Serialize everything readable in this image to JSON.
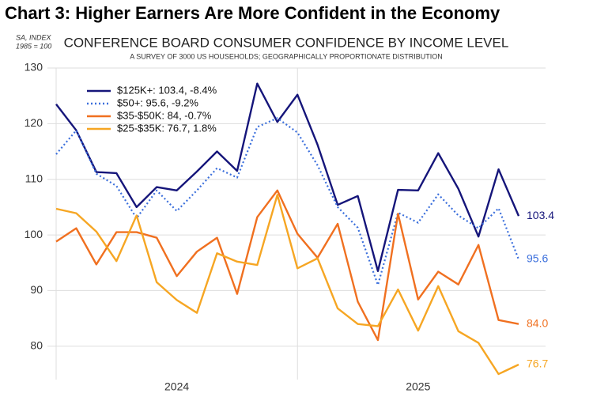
{
  "page_title": "Chart 3: Higher Earners Are More Confident in the Economy",
  "chart_data": {
    "type": "line",
    "title": "CONFERENCE BOARD CONSUMER CONFIDENCE BY INCOME LEVEL",
    "subtitle": "A SURVEY OF 3000 US HOUSEHOLDS; GEOGRAPHICALLY PROPORTIONATE DISTRIBUTION",
    "y_label_lines": [
      "SA, INDEX",
      "1985 = 100"
    ],
    "categories": [
      null,
      null,
      null,
      null,
      null,
      null,
      "2024",
      null,
      null,
      null,
      null,
      null,
      null,
      null,
      null,
      null,
      null,
      null,
      "2025",
      null,
      null,
      null,
      null,
      null
    ],
    "ylim": [
      74,
      130
    ],
    "yticks": [
      80,
      90,
      100,
      110,
      120,
      130
    ],
    "grid": true,
    "legend": "upper-left",
    "series": [
      {
        "name": "$125K+: 103.4, -8.4%",
        "color": "#15157a",
        "style": "solid",
        "values": [
          123.5,
          118.8,
          111.3,
          111.1,
          105.0,
          108.6,
          108.0,
          111.4,
          115.0,
          111.5,
          127.2,
          120.3,
          125.2,
          116.2,
          105.4,
          107.0,
          93.5,
          108.1,
          108.0,
          114.7,
          108.3,
          99.7,
          111.8,
          103.4
        ],
        "value_labels": [
          null,
          null,
          null,
          null,
          null,
          null,
          null,
          null,
          null,
          null,
          null,
          null,
          null,
          null,
          null,
          null,
          null,
          null,
          null,
          null,
          null,
          null,
          null,
          "103.4"
        ]
      },
      {
        "name": "$50+: 95.6, -9.2%",
        "color": "#3b6fdc",
        "style": "dotted",
        "values": [
          114.5,
          118.8,
          111.0,
          108.8,
          103.0,
          108.0,
          104.3,
          108.0,
          112.0,
          110.3,
          119.4,
          121.0,
          118.4,
          112.5,
          105.0,
          101.3,
          91.0,
          104.0,
          102.2,
          107.3,
          103.5,
          101.2,
          104.8,
          95.6
        ],
        "value_labels": [
          null,
          null,
          null,
          null,
          null,
          null,
          null,
          null,
          null,
          null,
          null,
          null,
          null,
          null,
          null,
          null,
          null,
          null,
          null,
          null,
          null,
          null,
          null,
          "95.6"
        ]
      },
      {
        "name": "$35-$50K: 84, -0.7%",
        "color": "#f07020",
        "style": "solid",
        "values": [
          98.8,
          101.2,
          94.7,
          100.5,
          100.5,
          99.5,
          92.6,
          97.0,
          99.5,
          89.4,
          103.2,
          108.0,
          100.2,
          95.9,
          102.0,
          88.0,
          81.1,
          103.8,
          88.4,
          93.4,
          91.1,
          98.2,
          84.7,
          84
        ],
        "value_labels": [
          null,
          null,
          null,
          null,
          null,
          null,
          null,
          null,
          null,
          null,
          null,
          null,
          null,
          null,
          null,
          null,
          null,
          null,
          null,
          null,
          null,
          null,
          null,
          "84.0"
        ]
      },
      {
        "name": "$25-$35K: 76.7, 1.8%",
        "color": "#f6a623",
        "style": "solid",
        "values": [
          104.7,
          103.9,
          100.6,
          95.3,
          103.5,
          91.5,
          88.3,
          86.0,
          96.7,
          95.2,
          94.6,
          107.2,
          94.0,
          95.8,
          86.8,
          84.0,
          83.6,
          90.2,
          82.8,
          90.8,
          82.7,
          80.6,
          75.0,
          76.7
        ],
        "value_labels": [
          null,
          null,
          null,
          null,
          null,
          null,
          null,
          null,
          null,
          null,
          null,
          null,
          null,
          null,
          null,
          null,
          null,
          null,
          null,
          null,
          null,
          null,
          null,
          "76.7"
        ]
      }
    ]
  }
}
